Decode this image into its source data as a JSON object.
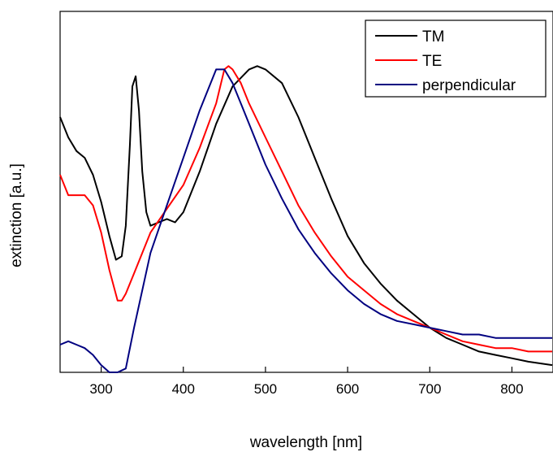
{
  "chart_data": {
    "type": "line",
    "title": "",
    "xlabel": "wavelength [nm]",
    "ylabel": "extinction [a.u.]",
    "xlim": [
      250,
      850
    ],
    "ylim": [
      0,
      1
    ],
    "x_ticks": [
      300,
      400,
      500,
      600,
      700,
      800
    ],
    "x_tick_labels": [
      "300",
      "400",
      "500",
      "600",
      "700",
      "800"
    ],
    "y_tick_labels_shown": false,
    "grid": false,
    "legend_position": "top-right",
    "series": [
      {
        "name": "TM",
        "color": "#000000",
        "x": [
          250,
          260,
          270,
          280,
          290,
          300,
          310,
          318,
          325,
          330,
          335,
          338,
          342,
          346,
          350,
          355,
          360,
          370,
          380,
          390,
          400,
          420,
          440,
          460,
          480,
          490,
          500,
          520,
          540,
          560,
          580,
          600,
          620,
          640,
          660,
          680,
          700,
          720,
          740,
          760,
          780,
          800,
          820,
          850
        ],
        "y": [
          0.78,
          0.72,
          0.68,
          0.66,
          0.61,
          0.53,
          0.43,
          0.36,
          0.37,
          0.46,
          0.7,
          0.87,
          0.9,
          0.8,
          0.62,
          0.5,
          0.46,
          0.47,
          0.48,
          0.47,
          0.5,
          0.62,
          0.76,
          0.87,
          0.92,
          0.93,
          0.92,
          0.88,
          0.78,
          0.66,
          0.54,
          0.43,
          0.35,
          0.29,
          0.24,
          0.2,
          0.16,
          0.13,
          0.11,
          0.09,
          0.08,
          0.07,
          0.06,
          0.05
        ]
      },
      {
        "name": "TE",
        "color": "#ff0000",
        "x": [
          250,
          260,
          270,
          280,
          290,
          300,
          310,
          320,
          325,
          330,
          340,
          360,
          380,
          400,
          420,
          440,
          450,
          455,
          460,
          470,
          480,
          500,
          520,
          540,
          560,
          580,
          600,
          620,
          640,
          660,
          680,
          700,
          720,
          740,
          760,
          780,
          800,
          820,
          850
        ],
        "y": [
          0.61,
          0.55,
          0.55,
          0.55,
          0.52,
          0.44,
          0.33,
          0.24,
          0.24,
          0.26,
          0.32,
          0.44,
          0.51,
          0.58,
          0.69,
          0.82,
          0.92,
          0.93,
          0.92,
          0.88,
          0.82,
          0.72,
          0.62,
          0.52,
          0.44,
          0.37,
          0.31,
          0.27,
          0.23,
          0.2,
          0.18,
          0.16,
          0.14,
          0.12,
          0.11,
          0.1,
          0.1,
          0.09,
          0.09
        ]
      },
      {
        "name": "perpendicular",
        "color": "#000080",
        "x": [
          250,
          260,
          270,
          280,
          290,
          300,
          310,
          320,
          330,
          340,
          360,
          380,
          400,
          420,
          440,
          450,
          460,
          470,
          480,
          500,
          520,
          540,
          560,
          580,
          600,
          620,
          640,
          660,
          680,
          700,
          720,
          740,
          760,
          780,
          800,
          820,
          850
        ],
        "y": [
          0.11,
          0.12,
          0.11,
          0.1,
          0.08,
          0.05,
          0.01,
          0.0,
          0.04,
          0.16,
          0.38,
          0.52,
          0.66,
          0.8,
          0.92,
          0.92,
          0.88,
          0.82,
          0.76,
          0.64,
          0.54,
          0.45,
          0.38,
          0.32,
          0.27,
          0.23,
          0.2,
          0.18,
          0.17,
          0.16,
          0.15,
          0.14,
          0.14,
          0.13,
          0.13,
          0.13,
          0.13
        ]
      }
    ]
  }
}
